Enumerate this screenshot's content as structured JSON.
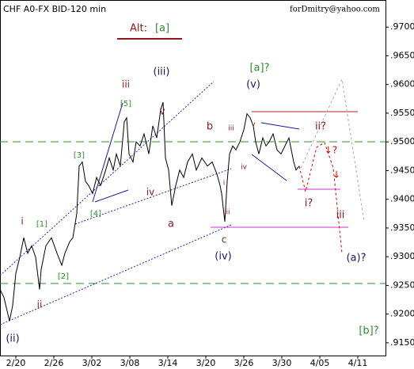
{
  "chart_data": {
    "type": "line",
    "title": "CHF A0-FX BID-120 min",
    "subtitle": "forDmitry@yahoo.com",
    "x": [
      -20,
      -15,
      -8,
      -4,
      0,
      5,
      10,
      15,
      20,
      25,
      30,
      32,
      38,
      45,
      52,
      58,
      62,
      68,
      72,
      77,
      80,
      84,
      88,
      92,
      97,
      102,
      107,
      112,
      118,
      123,
      127,
      132,
      137,
      140,
      143,
      148,
      152,
      157,
      162,
      168,
      173,
      178,
      183,
      186,
      189,
      193,
      197,
      202,
      207,
      212,
      217,
      223,
      228,
      235,
      242,
      248,
      254,
      258,
      260,
      264,
      267,
      270,
      274,
      278,
      283,
      288,
      292,
      296,
      300,
      303,
      307,
      312,
      316,
      320,
      325,
      330,
      335,
      340,
      345,
      348,
      351,
      354,
      358
    ],
    "series": [
      {
        "color": "#000000",
        "values": [
          0.9243,
          0.9229,
          0.9188,
          0.9215,
          0.9271,
          0.9299,
          0.9333,
          0.9306,
          0.9319,
          0.9299,
          0.9243,
          0.9278,
          0.9319,
          0.9333,
          0.9306,
          0.9285,
          0.9306,
          0.9326,
          0.9333,
          0.9375,
          0.9458,
          0.9465,
          0.9431,
          0.9424,
          0.941,
          0.9438,
          0.9424,
          0.9444,
          0.9472,
          0.9451,
          0.9479,
          0.9458,
          0.9535,
          0.9542,
          0.9479,
          0.9465,
          0.95,
          0.9493,
          0.9514,
          0.9479,
          0.9528,
          0.9507,
          0.9556,
          0.9569,
          0.9472,
          0.9451,
          0.9389,
          0.9424,
          0.9451,
          0.9438,
          0.9465,
          0.9479,
          0.9451,
          0.9472,
          0.9458,
          0.9465,
          0.9444,
          0.9424,
          0.941,
          0.9361,
          0.9431,
          0.9479,
          0.9493,
          0.9486,
          0.95,
          0.9521,
          0.9549,
          0.9542,
          0.9528,
          0.95,
          0.9479,
          0.9507,
          0.9493,
          0.95,
          0.9514,
          0.9486,
          0.9479,
          0.9493,
          0.9507,
          0.9486,
          0.9465,
          0.9451,
          0.9458
        ]
      }
    ],
    "xlim": [
      -20,
      467
    ],
    "xticks": [
      {
        "value": 0,
        "label": "2/20"
      },
      {
        "value": 48,
        "label": "2/26"
      },
      {
        "value": 96,
        "label": "3/02"
      },
      {
        "value": 144,
        "label": "3/08"
      },
      {
        "value": 192,
        "label": "3/14"
      },
      {
        "value": 240,
        "label": "3/20"
      },
      {
        "value": 288,
        "label": "3/26"
      },
      {
        "value": 336,
        "label": "3/30"
      },
      {
        "value": 384,
        "label": "4/05"
      },
      {
        "value": 432,
        "label": "4/11"
      }
    ],
    "ylim": [
      0.91278,
      0.97472
    ],
    "yticks": [
      {
        "value": 0.97,
        "label": ".9700"
      },
      {
        "value": 0.965,
        "label": ".9650"
      },
      {
        "value": 0.96,
        "label": ".9600"
      },
      {
        "value": 0.955,
        "label": ".9550"
      },
      {
        "value": 0.95,
        "label": ".9500"
      },
      {
        "value": 0.945,
        "label": ".9450"
      },
      {
        "value": 0.94,
        "label": ".9400"
      },
      {
        "value": 0.935,
        "label": ".9350"
      },
      {
        "value": 0.93,
        "label": ".9300"
      },
      {
        "value": 0.925,
        "label": ".9250"
      },
      {
        "value": 0.92,
        "label": ".9200"
      },
      {
        "value": 0.915,
        "label": ".9150"
      }
    ],
    "annotations": [
      {
        "text": "Alt:",
        "color": "#8b1a1a"
      },
      {
        "text": "[a]",
        "color": "#2e8b2e"
      },
      {
        "text": "i",
        "color": "#8b1a1a"
      },
      {
        "text": "[1]",
        "color": "#2e8b2e"
      },
      {
        "text": "ii",
        "color": "#8b1a1a"
      },
      {
        "text": "[2]",
        "color": "#2e8b2e"
      },
      {
        "text": "[3]",
        "color": "#2e8b2e"
      },
      {
        "text": "[4]",
        "color": "#2e8b2e"
      },
      {
        "text": "[5]",
        "color": "#2e8b2e"
      },
      {
        "text": "iii",
        "color": "#8b1a1a"
      },
      {
        "text": "(iii)",
        "color": "#1a1a6e"
      },
      {
        "text": "v",
        "color": "#8b1a1a"
      },
      {
        "text": "iv",
        "color": "#8b1a1a"
      },
      {
        "text": "a",
        "color": "#8b1a1a"
      },
      {
        "text": "b",
        "color": "#8b1a1a"
      },
      {
        "text": "c",
        "color": "#8b1a1a"
      },
      {
        "text": "(iv)",
        "color": "#1a1a6e"
      },
      {
        "text": "iii",
        "color": "#8b1a1a"
      },
      {
        "text": "i",
        "color": "#8b1a1a"
      },
      {
        "text": "ii",
        "color": "#8b1a1a"
      },
      {
        "text": "iv",
        "color": "#8b1a1a"
      },
      {
        "text": "v",
        "color": "#8b1a1a"
      },
      {
        "text": "(v)",
        "color": "#1a1a6e"
      },
      {
        "text": "[a]?",
        "color": "#2e8b2e"
      },
      {
        "text": "ii?",
        "color": "#8b1a1a"
      },
      {
        "text": "i?",
        "color": "#8b1a1a"
      },
      {
        "text": "iii",
        "color": "#8b1a1a"
      },
      {
        "text": "(a)?",
        "color": "#1a1a6e"
      },
      {
        "text": "[b]?",
        "color": "#2e8b2e"
      },
      {
        "text": "(ii)",
        "color": "#1a1a6e"
      },
      {
        "text": "↓?",
        "color": "#dd0000"
      },
      {
        "text": "↓",
        "color": "#dd0000"
      }
    ]
  }
}
